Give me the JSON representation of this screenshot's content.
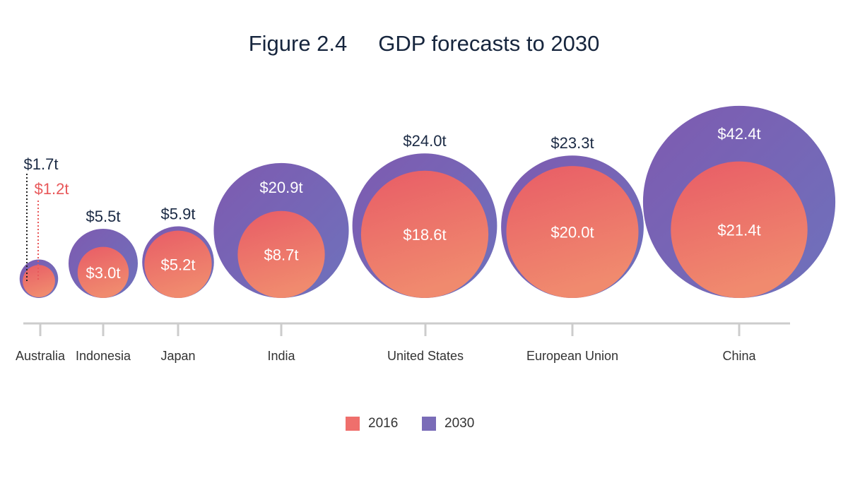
{
  "title": {
    "figure": "Figure 2.4",
    "text": "GDP forecasts to 2030"
  },
  "colors": {
    "c2016": "#ef6f6c",
    "c2030": "#7a6cb8",
    "axis": "#cccccc",
    "label_dark": "#1b2a44",
    "label_light": "#ffffff",
    "label_2016_outside": "#e8585a"
  },
  "legend": {
    "items": [
      {
        "label": "2016",
        "color": "#ef6f6c"
      },
      {
        "label": "2030",
        "color": "#7a6cb8"
      }
    ]
  },
  "chart_data": {
    "type": "bubble",
    "title": "GDP forecasts to 2030",
    "categories": [
      "Australia",
      "Indonesia",
      "Japan",
      "India",
      "United States",
      "European Union",
      "China"
    ],
    "series": [
      {
        "name": "2016",
        "values": [
          1.2,
          3.0,
          5.2,
          8.7,
          18.6,
          20.0,
          21.4
        ],
        "labels": [
          "$1.2t",
          "$3.0t",
          "$5.2t",
          "$8.7t",
          "$18.6t",
          "$20.0t",
          "$21.4t"
        ]
      },
      {
        "name": "2030",
        "values": [
          1.7,
          5.5,
          5.9,
          20.9,
          24.0,
          23.3,
          42.4
        ],
        "labels": [
          "$1.7t",
          "$5.5t",
          "$5.9t",
          "$20.9t",
          "$24.0t",
          "$23.3t",
          "$42.4t"
        ]
      }
    ],
    "unit": "trillion USD"
  }
}
